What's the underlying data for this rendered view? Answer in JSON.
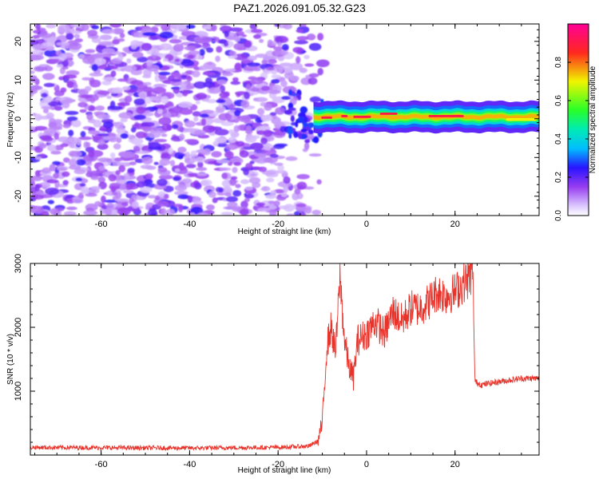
{
  "chart_data": [
    {
      "type": "heatmap",
      "title": "PAZ1.2026.091.05.32.G23",
      "xlabel": "Height of straight line (km)",
      "ylabel": "Frequency (Hz)",
      "xlim": [
        -76,
        39
      ],
      "ylim": [
        -25,
        24.5
      ],
      "x_ticks": [
        -60,
        -40,
        -20,
        0,
        20
      ],
      "y_ticks": [
        -20,
        -10,
        0,
        10,
        20
      ],
      "colorbar": {
        "label": "Normalized spectral amplitude",
        "range": [
          0,
          1
        ],
        "ticks": [
          0.0,
          0.2,
          0.4,
          0.6,
          0.8
        ],
        "tick_labels": [
          "0.0",
          "0.2",
          "0.4",
          "0.6",
          "0.8"
        ],
        "colormap": "rainbow (white→purple→blue→cyan→green→yellow→red→magenta)"
      },
      "description_of_signal": [
        {
          "x_range": [
            -76,
            -12
          ],
          "frequency_range": [
            -25,
            24.5
          ],
          "amplitude": 0.1,
          "pattern": "scattered noise blobs"
        },
        {
          "x_range": [
            -12,
            39
          ],
          "frequency": 0.5,
          "amplitude": 1.0,
          "pattern": "narrow tone near 0 Hz"
        }
      ]
    },
    {
      "type": "line",
      "xlabel": "Height of straight line (km)",
      "ylabel": "SNR (10 * v/v)",
      "xlim": [
        -76,
        39
      ],
      "ylim": [
        0,
        3000
      ],
      "x_ticks": [
        -60,
        -40,
        -20,
        0,
        20
      ],
      "y_ticks": [
        1000,
        2000,
        3000
      ],
      "series": [
        {
          "color": "#e8332b",
          "x": [
            -76,
            -60,
            -40,
            -20,
            -13,
            -11,
            -10,
            -9,
            -8,
            -7,
            -6,
            -5,
            -4,
            -3,
            -2,
            0,
            2,
            4,
            6,
            8,
            10,
            12,
            14,
            16,
            18,
            20,
            22,
            23.5,
            24,
            24.5,
            26,
            30,
            35,
            39
          ],
          "y": [
            120,
            115,
            110,
            120,
            140,
            220,
            500,
            1700,
            2000,
            1600,
            2800,
            1800,
            1400,
            1200,
            1800,
            1900,
            2100,
            1900,
            2250,
            2100,
            2300,
            2300,
            2400,
            2550,
            2500,
            2550,
            2700,
            2800,
            2900,
            1150,
            1100,
            1150,
            1200,
            1200
          ]
        }
      ]
    }
  ]
}
